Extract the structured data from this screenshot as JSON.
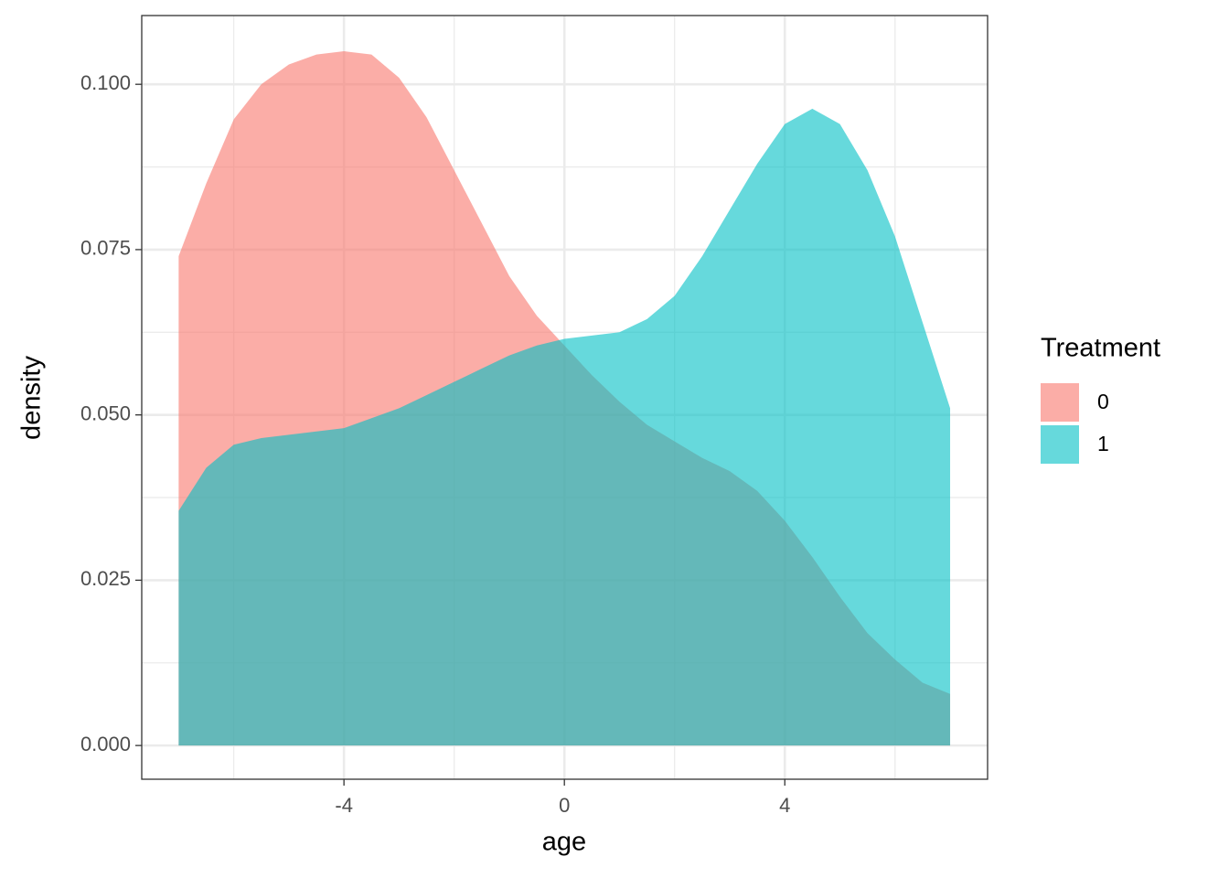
{
  "chart_data": {
    "type": "area",
    "x_label": "age",
    "y_label": "density",
    "legend_title": "Treatment",
    "legend_position": "right",
    "x": [
      -7,
      -6.5,
      -6,
      -5.5,
      -5,
      -4.5,
      -4,
      -3.5,
      -3,
      -2.5,
      -2,
      -1.5,
      -1,
      -0.5,
      0,
      0.5,
      1,
      1.5,
      2,
      2.5,
      3,
      3.5,
      4,
      4.5,
      5,
      5.5,
      6,
      6.5,
      7
    ],
    "series": [
      {
        "name": "0",
        "color": "#F8766D",
        "values": [
          0.074,
          0.085,
          0.0947,
          0.1,
          0.103,
          0.1045,
          0.105,
          0.1045,
          0.101,
          0.095,
          0.087,
          0.079,
          0.071,
          0.065,
          0.0605,
          0.056,
          0.052,
          0.0485,
          0.046,
          0.0435,
          0.0415,
          0.0385,
          0.034,
          0.0285,
          0.0225,
          0.017,
          0.013,
          0.0095,
          0.0078
        ]
      },
      {
        "name": "1",
        "color": "#00BFC4",
        "values": [
          0.0355,
          0.042,
          0.0455,
          0.0465,
          0.047,
          0.0475,
          0.048,
          0.0495,
          0.051,
          0.053,
          0.055,
          0.057,
          0.059,
          0.0605,
          0.0615,
          0.062,
          0.0625,
          0.0645,
          0.068,
          0.074,
          0.081,
          0.088,
          0.094,
          0.0963,
          0.094,
          0.087,
          0.077,
          0.064,
          0.051
        ]
      }
    ],
    "fill_opacity": 0.6,
    "xlim": [
      -7.67,
      7.68
    ],
    "xticks": [
      -4,
      0,
      4
    ],
    "ylim": [
      -0.0051,
      0.1104
    ],
    "yticks": [
      {
        "value": 0,
        "label": "0.000"
      },
      {
        "value": 0.025,
        "label": "0.025"
      },
      {
        "value": 0.05,
        "label": "0.050"
      },
      {
        "value": 0.075,
        "label": "0.075"
      },
      {
        "value": 0.1,
        "label": "0.100"
      }
    ],
    "grid": true
  }
}
